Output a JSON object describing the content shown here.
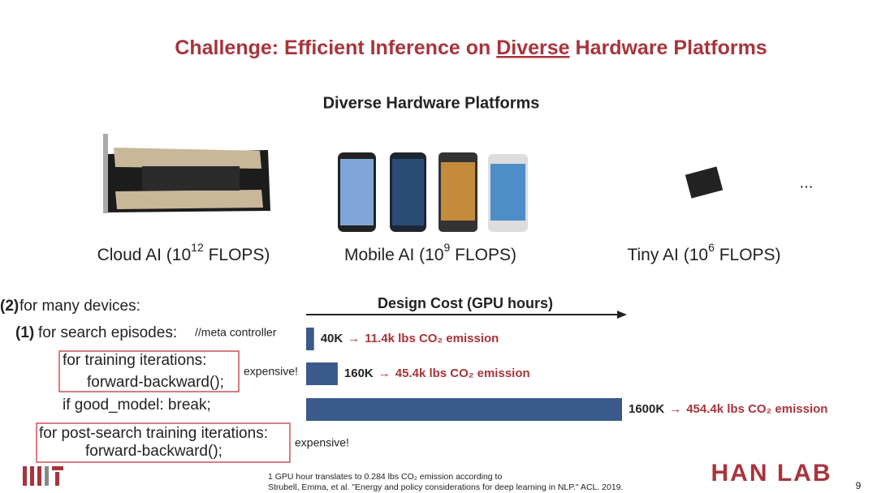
{
  "title": {
    "before": "Challenge: Efficient Inference on ",
    "emph": "Diverse",
    "after": " Hardware Platforms"
  },
  "section_title": "Diverse Hardware Platforms",
  "platforms": [
    {
      "prefix": "Cloud AI (10",
      "exponent": "12",
      "suffix": " FLOPS)"
    },
    {
      "prefix": "Mobile AI (10",
      "exponent": "9",
      "suffix": " FLOPS)"
    },
    {
      "prefix": "Tiny AI (10",
      "exponent": "6",
      "suffix": " FLOPS)"
    }
  ],
  "ellipsis": "...",
  "code": {
    "outer_num": "(2)",
    "outer": "for many devices:",
    "inner_num": "(1)",
    "inner": "for search episodes:",
    "inner_comment": "//meta controller",
    "train": "for training iterations:",
    "train_body": "forward-backward();",
    "break": "if good_model: break;",
    "post": "for post-search training iterations:",
    "post_body": "forward-backward();",
    "expensive_1": "expensive!",
    "expensive_2": "expensive!"
  },
  "design_cost": {
    "title": "Design Cost (GPU hours)",
    "values": [
      40000,
      160000,
      1600000
    ],
    "value_labels": [
      "40K",
      "160K",
      "1600K"
    ],
    "emissions": [
      "11.4k lbs CO₂ emission",
      "45.4k lbs CO₂ emission",
      "454.4k lbs CO₂ emission"
    ],
    "arrow": "→",
    "xlim": [
      0,
      1600000
    ],
    "color": "#3a5a8c"
  },
  "footnote": [
    "1 GPU hour translates to 0.284 lbs CO₂ emission according to",
    "Strubell, Emma, et al. \"Energy and policy considerations for deep learning in NLP.\" ACL. 2019."
  ],
  "logo_right": "HAN LAB",
  "page_number": "9"
}
